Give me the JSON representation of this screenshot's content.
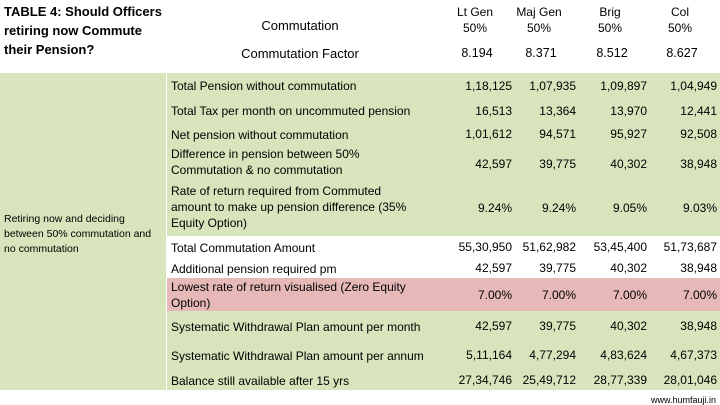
{
  "title": "TABLE 4: Should Officers retiring now Commute their Pension?",
  "header": {
    "commutation_label": "Commutation",
    "factor_label": "Commutation Factor",
    "columns": [
      {
        "rank": "Lt Gen",
        "pct": "50%",
        "factor": "8.194"
      },
      {
        "rank": "Maj Gen",
        "pct": "50%",
        "factor": "8.371"
      },
      {
        "rank": "Brig",
        "pct": "50%",
        "factor": "8.512"
      },
      {
        "rank": "Col",
        "pct": "50%",
        "factor": "8.627"
      }
    ]
  },
  "side_note": "Retiring now and deciding between 50% commutation and no commutation",
  "rows": [
    {
      "label": "Total Pension without commutation",
      "values": [
        "1,18,125",
        "1,07,935",
        "1,09,897",
        "1,04,949"
      ]
    },
    {
      "label": "Total Tax per month on uncommuted pension",
      "values": [
        "16,513",
        "13,364",
        "13,970",
        "12,441"
      ]
    },
    {
      "label": "Net pension without commutation",
      "values": [
        "1,01,612",
        "94,571",
        "95,927",
        "92,508"
      ]
    },
    {
      "label": "Difference in pension between 50% Commutation & no commutation",
      "values": [
        "42,597",
        "39,775",
        "40,302",
        "38,948"
      ]
    },
    {
      "label": "Rate of return required from Commuted amount to make up pension difference (35% Equity Option)",
      "values": [
        "9.24%",
        "9.24%",
        "9.05%",
        "9.03%"
      ]
    },
    {
      "label": "Total Commutation Amount",
      "values": [
        "55,30,950",
        "51,62,982",
        "53,45,400",
        "51,73,687"
      ]
    },
    {
      "label": "Additional pension required pm",
      "values": [
        "42,597",
        "39,775",
        "40,302",
        "38,948"
      ]
    },
    {
      "label": "Lowest rate of return visualised (Zero Equity Option)",
      "values": [
        "7.00%",
        "7.00%",
        "7.00%",
        "7.00%"
      ]
    },
    {
      "label": "Systematic Withdrawal Plan amount per month",
      "values": [
        "42,597",
        "39,775",
        "40,302",
        "38,948"
      ]
    },
    {
      "label": "Systematic Withdrawal Plan amount per annum",
      "values": [
        "5,11,164",
        "4,77,294",
        "4,83,624",
        "4,67,373"
      ]
    },
    {
      "label": "Balance still available after 15 yrs",
      "values": [
        "27,34,746",
        "25,49,712",
        "28,77,339",
        "28,01,046"
      ]
    }
  ],
  "colors": {
    "green": "#d8e4bc",
    "pink": "#e6b9b8"
  },
  "footer": "www.humfauji.in"
}
